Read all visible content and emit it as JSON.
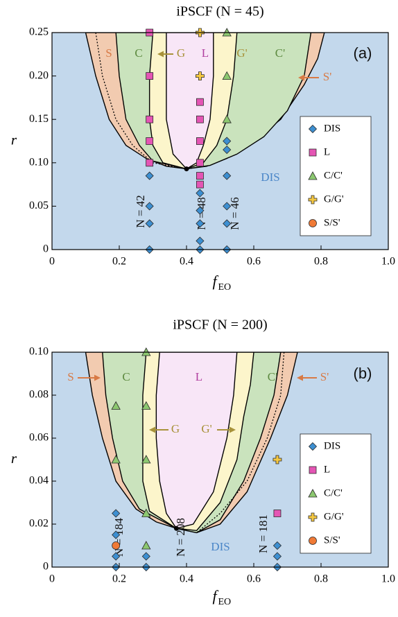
{
  "chart_data": [
    {
      "type": "scatter",
      "title": "iPSCF (N = 45)",
      "x_label": "f",
      "x_label_sub": "EO",
      "y_label": "r",
      "xlim": [
        0,
        1
      ],
      "ylim": [
        0,
        0.25
      ],
      "xticks": [
        0,
        0.2,
        0.4,
        0.6,
        0.8,
        {
          "value": 1,
          "label": "1.0"
        }
      ],
      "yticks": [
        0,
        0.05,
        {
          "value": 0.1,
          "label": "0.10"
        },
        0.15,
        {
          "value": 0.2,
          "label": "0.20"
        },
        0.25
      ],
      "background": "#c3d8ec",
      "legend": "lower right",
      "regions": [
        {
          "color": "#f2cbb0",
          "x": [
            0.1,
            0.13,
            0.17,
            0.22,
            0.28,
            0.34,
            0.4,
            0.46,
            0.52,
            0.6,
            0.68,
            0.75,
            0.79,
            0.81
          ],
          "y": [
            0.25,
            0.2,
            0.15,
            0.12,
            0.105,
            0.096,
            0.093,
            0.096,
            0.105,
            0.125,
            0.15,
            0.19,
            0.22,
            0.25
          ]
        },
        {
          "color": "#cae3bd",
          "x": [
            0.19,
            0.2,
            0.22,
            0.26,
            0.3,
            0.4,
            0.47,
            0.55,
            0.63,
            0.7,
            0.75,
            0.77
          ],
          "y": [
            0.25,
            0.2,
            0.15,
            0.12,
            0.102,
            0.093,
            0.097,
            0.11,
            0.13,
            0.16,
            0.2,
            0.25
          ]
        },
        {
          "color": "#fcf5cb",
          "x": [
            0.3,
            0.29,
            0.29,
            0.3,
            0.33,
            0.4,
            0.45,
            0.49,
            0.52,
            0.54,
            0.55
          ],
          "y": [
            0.25,
            0.2,
            0.15,
            0.12,
            0.1,
            0.093,
            0.1,
            0.12,
            0.15,
            0.2,
            0.25
          ]
        },
        {
          "color": "#f8e6f7",
          "x": [
            0.34,
            0.34,
            0.34,
            0.36,
            0.4,
            0.43,
            0.45,
            0.47,
            0.48,
            0.48
          ],
          "y": [
            0.25,
            0.2,
            0.15,
            0.11,
            0.093,
            0.1,
            0.12,
            0.15,
            0.2,
            0.25
          ]
        }
      ],
      "dotted": {
        "x": [
          0.13,
          0.15,
          0.19,
          0.24,
          0.3,
          0.4
        ],
        "y": [
          0.25,
          0.2,
          0.15,
          0.12,
          0.1,
          0.093
        ]
      },
      "critical_point": [
        0.4,
        0.093
      ],
      "series": [
        {
          "name": "DIS",
          "marker": "diamond",
          "color": "#3d8fd1",
          "x": [
            0.29,
            0.29,
            0.29,
            0.29,
            0.44,
            0.44,
            0.44,
            0.44,
            0.44,
            0.52,
            0.52,
            0.52,
            0.52,
            0.52,
            0.52
          ],
          "y": [
            0.085,
            0.05,
            0.03,
            0,
            0.065,
            0.045,
            0.03,
            0.01,
            0,
            0.125,
            0.115,
            0.085,
            0.05,
            0.03,
            0
          ]
        },
        {
          "name": "L",
          "marker": "square",
          "color": "#e455b4",
          "x": [
            0.29,
            0.29,
            0.29,
            0.29,
            0.29,
            0.44,
            0.44,
            0.44,
            0.44,
            0.44,
            0.44
          ],
          "y": [
            0.25,
            0.2,
            0.15,
            0.125,
            0.1,
            0.17,
            0.15,
            0.125,
            0.1,
            0.085,
            0.075
          ]
        },
        {
          "name": "C/C'",
          "marker": "triangle",
          "color": "#8cc870",
          "x": [
            0.52,
            0.52,
            0.52
          ],
          "y": [
            0.25,
            0.2,
            0.15
          ]
        },
        {
          "name": "G/G'",
          "marker": "plus",
          "color": "#f5c842",
          "x": [
            0.44,
            0.44
          ],
          "y": [
            0.25,
            0.2
          ]
        },
        {
          "name": "S/S'",
          "marker": "circle",
          "color": "#f07a36",
          "x": [],
          "y": []
        }
      ],
      "annotations": [
        "S",
        "C",
        "G",
        "L",
        "G'",
        "C'",
        "S'",
        "DIS",
        "(a)",
        "N = 42",
        "N = 48",
        "N = 46"
      ]
    },
    {
      "type": "scatter",
      "title": "iPSCF (N = 200)",
      "x_label": "f",
      "x_label_sub": "EO",
      "y_label": "r",
      "xlim": [
        0,
        1
      ],
      "ylim": [
        0,
        0.1
      ],
      "xticks": [
        0,
        0.2,
        0.4,
        0.6,
        0.8,
        {
          "value": 1,
          "label": "1.0"
        }
      ],
      "yticks": [
        0,
        0.02,
        0.04,
        0.06,
        0.08,
        {
          "value": 0.1,
          "label": "0.10"
        }
      ],
      "background": "#c3d8ec",
      "legend": "lower right",
      "regions": [
        {
          "color": "#f2cbb0",
          "x": [
            0.1,
            0.12,
            0.15,
            0.19,
            0.25,
            0.31,
            0.37,
            0.43,
            0.5,
            0.58,
            0.65,
            0.7,
            0.73
          ],
          "y": [
            0.1,
            0.08,
            0.06,
            0.04,
            0.027,
            0.021,
            0.018,
            0.016,
            0.02,
            0.035,
            0.06,
            0.08,
            0.1
          ]
        },
        {
          "color": "#cae3bd",
          "x": [
            0.15,
            0.16,
            0.18,
            0.21,
            0.26,
            0.37,
            0.43,
            0.5,
            0.57,
            0.62,
            0.66,
            0.68
          ],
          "y": [
            0.1,
            0.08,
            0.06,
            0.04,
            0.027,
            0.018,
            0.016,
            0.022,
            0.04,
            0.06,
            0.08,
            0.1
          ]
        },
        {
          "color": "#fcf5cb",
          "x": [
            0.28,
            0.27,
            0.27,
            0.27,
            0.29,
            0.37,
            0.43,
            0.5,
            0.55,
            0.57,
            0.59,
            0.6
          ],
          "y": [
            0.1,
            0.08,
            0.06,
            0.04,
            0.026,
            0.018,
            0.017,
            0.03,
            0.05,
            0.07,
            0.085,
            0.1
          ]
        },
        {
          "color": "#f8e6f7",
          "x": [
            0.32,
            0.31,
            0.31,
            0.32,
            0.34,
            0.37,
            0.42,
            0.48,
            0.52,
            0.54,
            0.55
          ],
          "y": [
            0.1,
            0.08,
            0.06,
            0.04,
            0.025,
            0.018,
            0.02,
            0.035,
            0.06,
            0.08,
            0.1
          ]
        }
      ],
      "dotted": {
        "x": [
          0.69,
          0.68,
          0.64,
          0.58,
          0.5,
          0.43
        ],
        "y": [
          0.1,
          0.08,
          0.06,
          0.04,
          0.025,
          0.016
        ]
      },
      "critical_point": [
        0.37,
        0.018
      ],
      "series": [
        {
          "name": "DIS",
          "marker": "diamond",
          "color": "#3d8fd1",
          "x": [
            0.19,
            0.19,
            0.19,
            0.19,
            0.28,
            0.28,
            0.67,
            0.67,
            0.67
          ],
          "y": [
            0.025,
            0.015,
            0.005,
            0,
            0.005,
            0,
            0.01,
            0.005,
            0
          ]
        },
        {
          "name": "L",
          "marker": "square",
          "color": "#e455b4",
          "x": [
            0.67
          ],
          "y": [
            0.025
          ]
        },
        {
          "name": "C/C'",
          "marker": "triangle",
          "color": "#8cc870",
          "x": [
            0.19,
            0.19,
            0.28,
            0.28,
            0.28,
            0.28,
            0.28
          ],
          "y": [
            0.075,
            0.05,
            0.1,
            0.075,
            0.05,
            0.025,
            0.01
          ]
        },
        {
          "name": "G/G'",
          "marker": "plus",
          "color": "#f5c842",
          "x": [
            0.67
          ],
          "y": [
            0.05
          ]
        },
        {
          "name": "S/S'",
          "marker": "circle",
          "color": "#f07a36",
          "x": [
            0.19
          ],
          "y": [
            0.01
          ]
        }
      ],
      "annotations": [
        "S",
        "C",
        "G",
        "L",
        "G'",
        "C'",
        "S'",
        "DIS",
        "(b)",
        "N = 184",
        "N = 208",
        "N = 181"
      ]
    }
  ]
}
